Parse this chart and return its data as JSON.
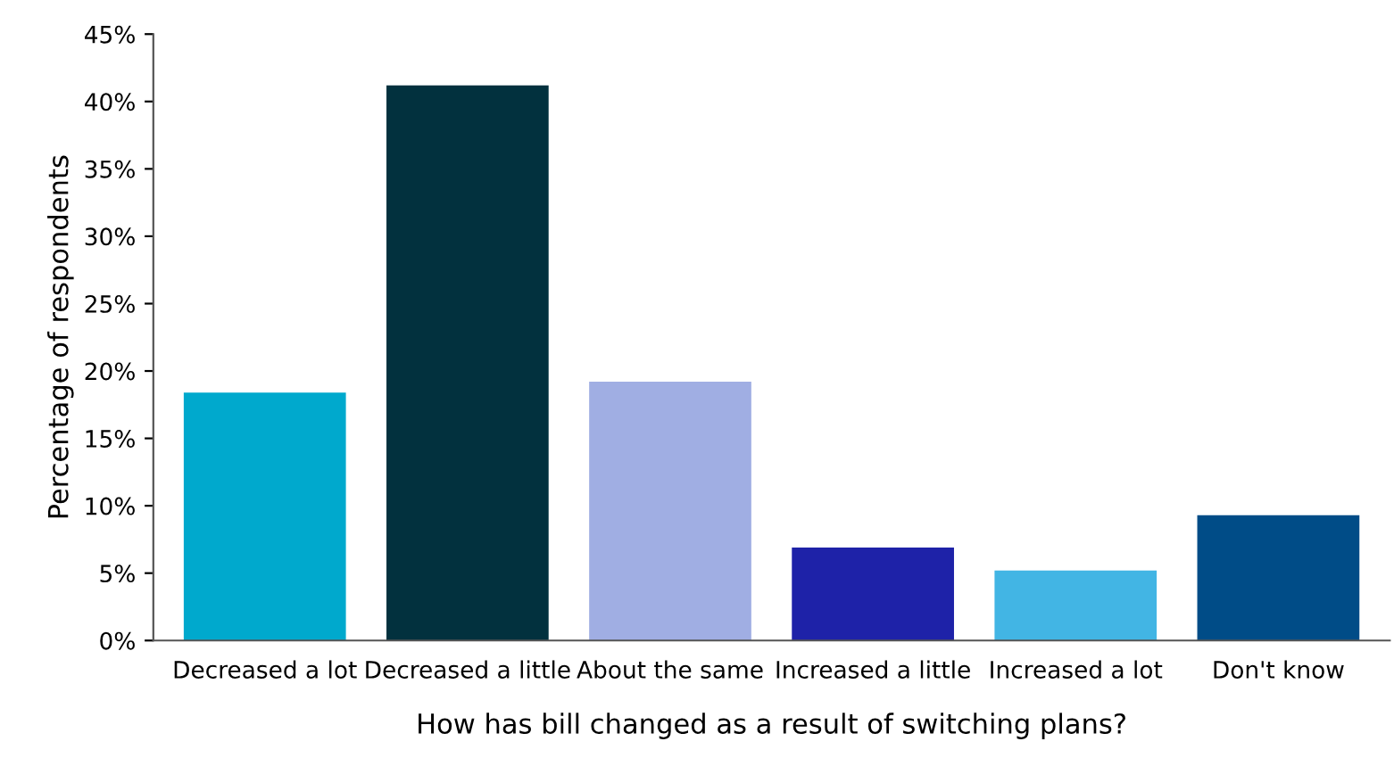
{
  "chart_data": {
    "type": "bar",
    "xlabel": "How has bill changed as a result of switching plans?",
    "ylabel": "Percentage of respondents",
    "categories": [
      "Decreased a lot",
      "Decreased a little",
      "About the same",
      "Increased a little",
      "Increased a lot",
      "Don't know"
    ],
    "values": [
      18.4,
      41.2,
      19.2,
      6.9,
      5.2,
      9.3
    ],
    "colors": [
      "#00a9cd",
      "#02313e",
      "#a0aee3",
      "#1e22a8",
      "#42b5e4",
      "#004c87"
    ],
    "ylim": [
      0,
      45
    ],
    "yticks": [
      {
        "value": 0,
        "label": "0%"
      },
      {
        "value": 5,
        "label": "5%"
      },
      {
        "value": 10,
        "label": "10%"
      },
      {
        "value": 15,
        "label": "15%"
      },
      {
        "value": 20,
        "label": "20%"
      },
      {
        "value": 25,
        "label": "25%"
      },
      {
        "value": 30,
        "label": "30%"
      },
      {
        "value": 35,
        "label": "35%"
      },
      {
        "value": 40,
        "label": "40%"
      },
      {
        "value": 45,
        "label": "45%"
      }
    ],
    "grid": false,
    "legend": false
  }
}
